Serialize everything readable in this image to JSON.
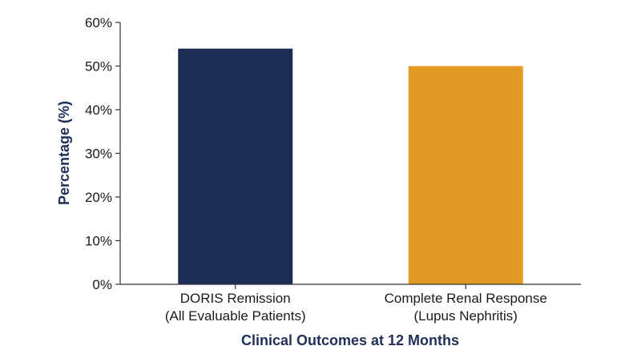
{
  "chart_data": {
    "type": "bar",
    "title": "",
    "xlabel": "Clinical Outcomes at 12 Months",
    "ylabel": "Percentage (%)",
    "ylim": [
      0,
      60
    ],
    "yticks": [
      "0%",
      "10%",
      "20%",
      "30%",
      "40%",
      "50%",
      "60%"
    ],
    "categories": [
      [
        "DORIS Remission",
        "(All Evaluable Patients)"
      ],
      [
        "Complete Renal Response",
        "(Lupus Nephritis)"
      ]
    ],
    "values": [
      54,
      50
    ],
    "colors": [
      "#1c2d55",
      "#e29a24"
    ],
    "grid": false,
    "legend": "none"
  }
}
